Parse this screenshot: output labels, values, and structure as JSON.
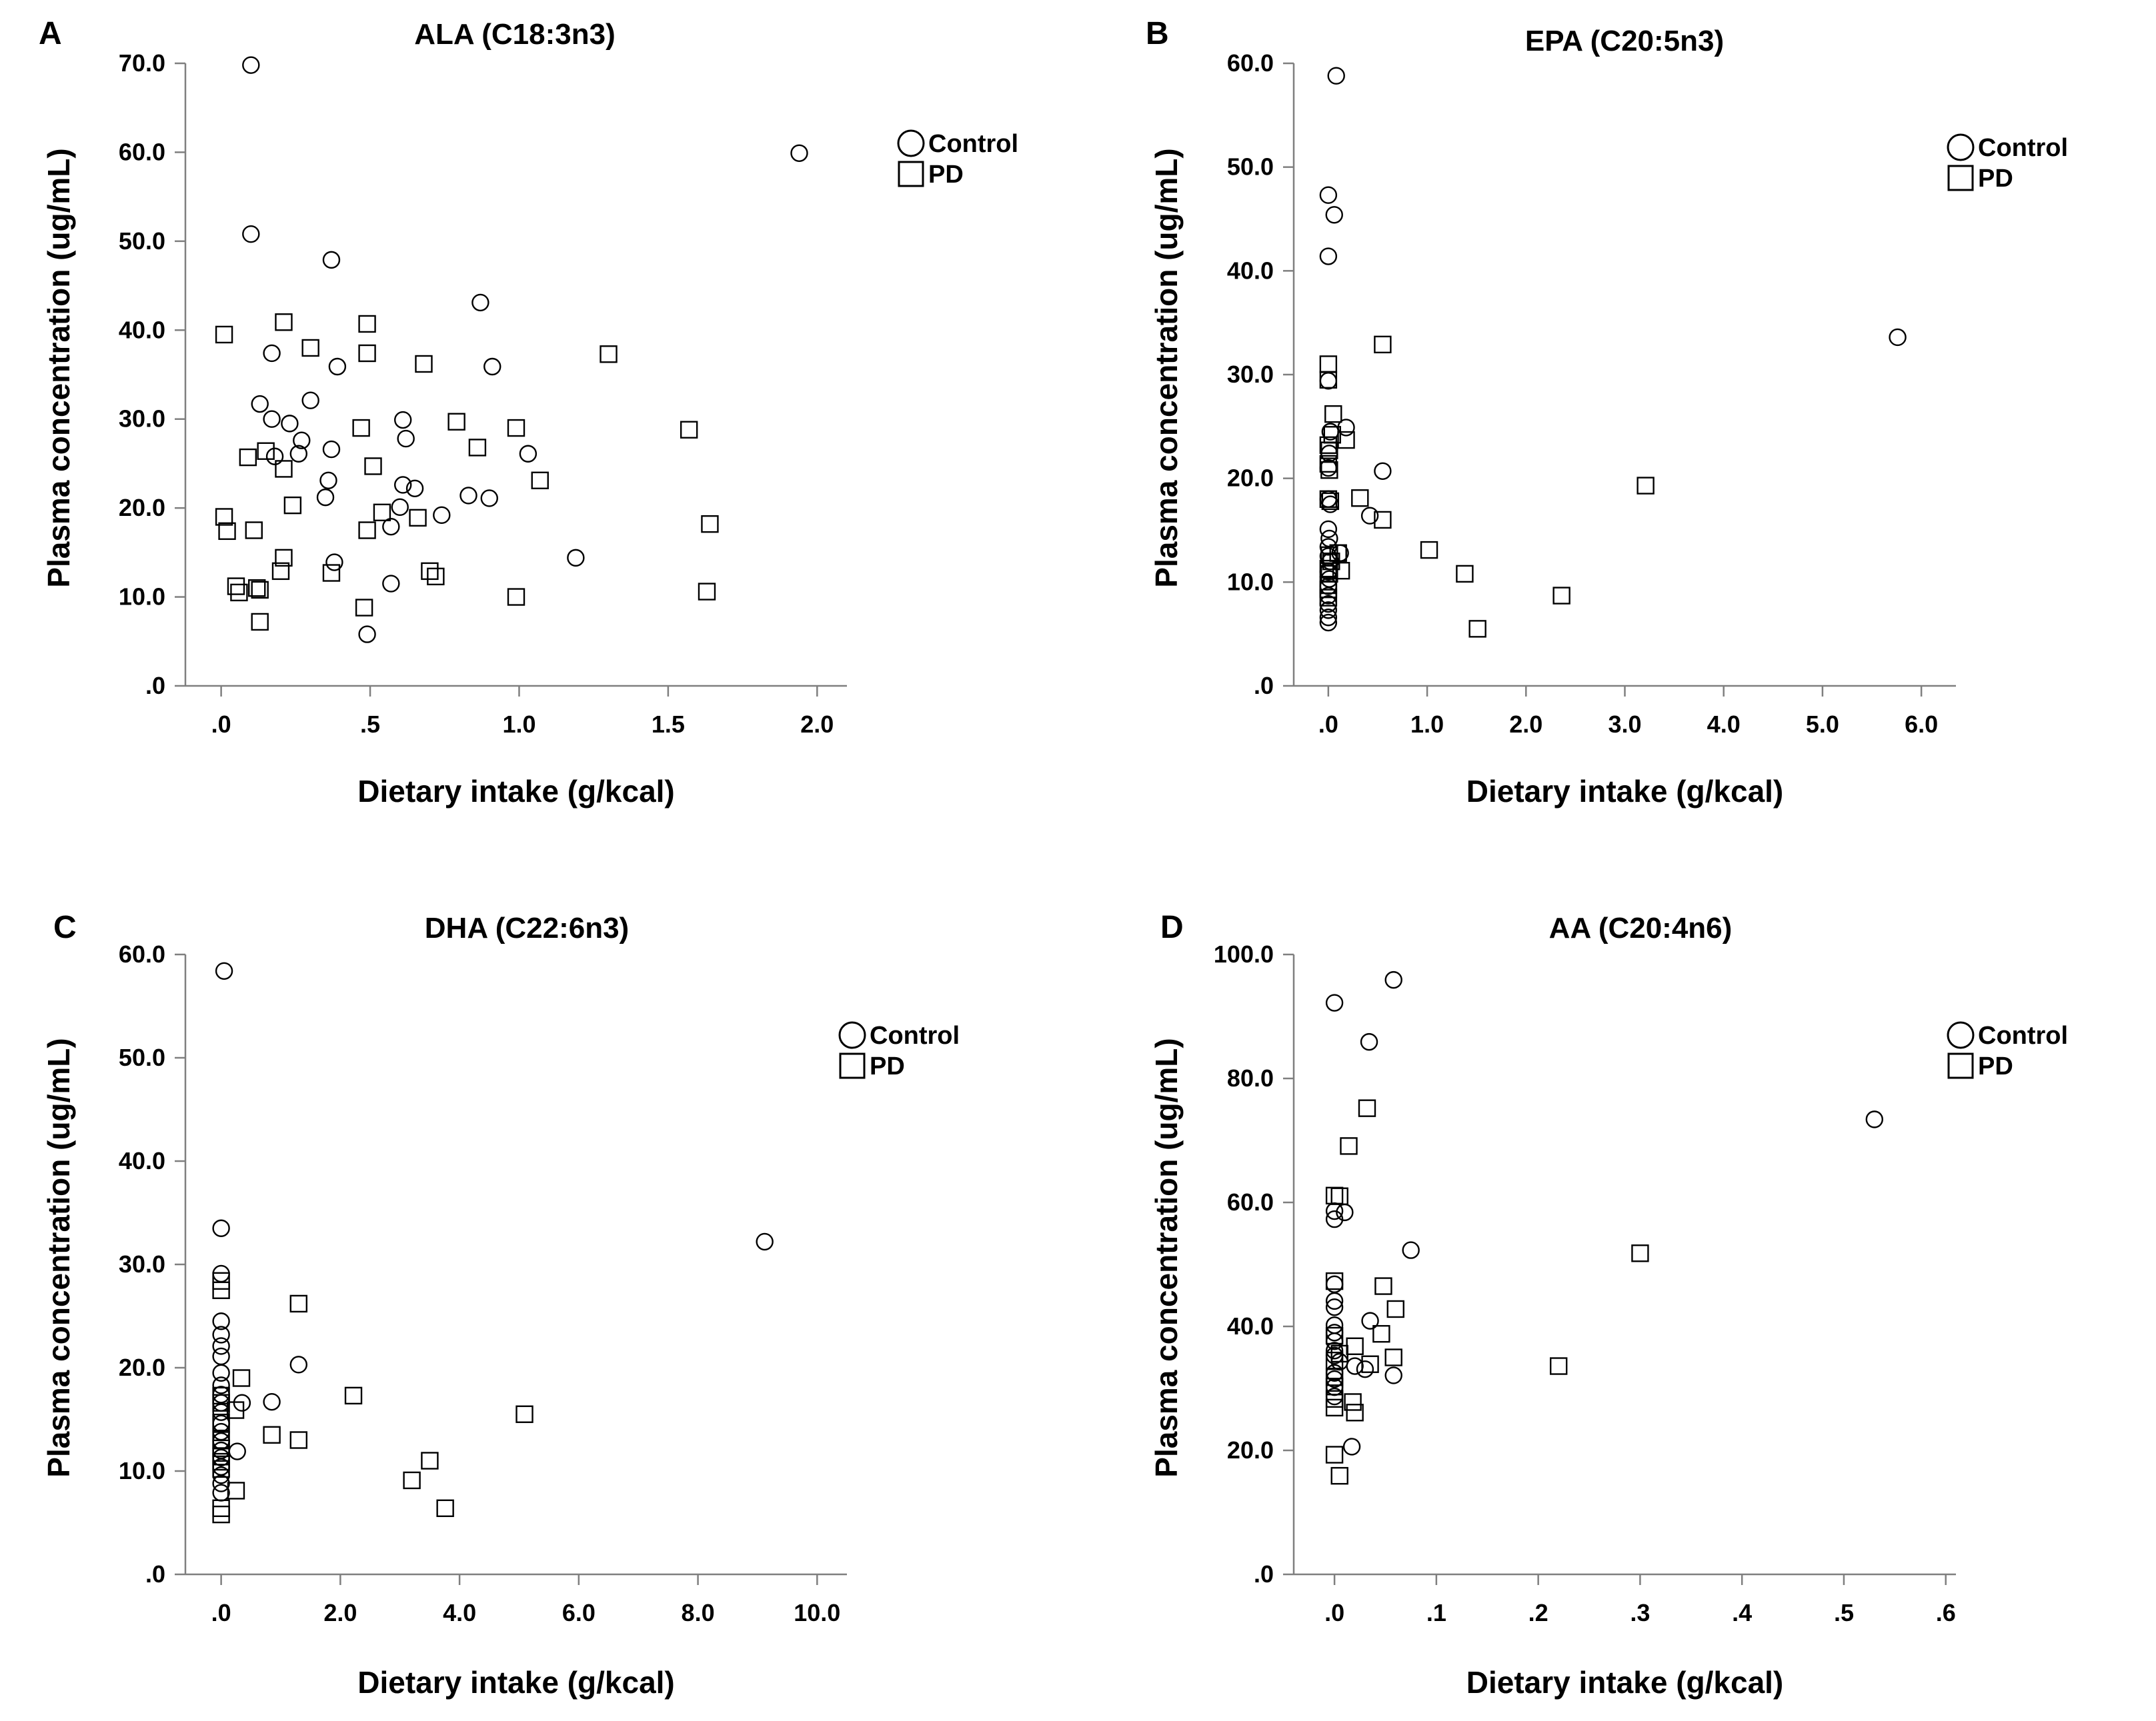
{
  "legend": {
    "control": "Control",
    "pd": "PD"
  },
  "chart_data": [
    {
      "panel": "A",
      "type": "scatter",
      "title": "ALA (C18:3n3)",
      "xlabel": "Dietary intake (g/kcal)",
      "ylabel": "Plasma concentration (ug/mL)",
      "xlim": [
        -0.12,
        2.1
      ],
      "ylim": [
        0,
        70
      ],
      "xticks": [
        0,
        0.5,
        1.0,
        1.5,
        2.0
      ],
      "xtick_labels": [
        ".0",
        ".5",
        "1.0",
        "1.5",
        "2.0"
      ],
      "yticks": [
        0,
        10,
        20,
        30,
        40,
        50,
        60,
        70
      ],
      "ytick_labels": [
        ".0",
        "10.0",
        "20.0",
        "30.0",
        "40.0",
        "50.0",
        "60.0",
        "70.0"
      ],
      "legend_position": "top-right",
      "series": [
        {
          "name": "Control",
          "marker": "circle",
          "points": [
            [
              0.1,
              69.8
            ],
            [
              0.1,
              50.8
            ],
            [
              1.94,
              59.9
            ],
            [
              0.37,
              47.9
            ],
            [
              0.87,
              43.1
            ],
            [
              0.39,
              35.9
            ],
            [
              0.91,
              35.9
            ],
            [
              0.17,
              37.4
            ],
            [
              0.13,
              31.7
            ],
            [
              0.17,
              30.0
            ],
            [
              0.3,
              32.1
            ],
            [
              0.23,
              29.5
            ],
            [
              0.61,
              29.9
            ],
            [
              0.62,
              27.8
            ],
            [
              0.27,
              27.6
            ],
            [
              0.37,
              26.6
            ],
            [
              0.18,
              25.8
            ],
            [
              0.26,
              26.1
            ],
            [
              1.03,
              26.1
            ],
            [
              0.36,
              23.1
            ],
            [
              0.35,
              21.2
            ],
            [
              0.61,
              22.6
            ],
            [
              0.65,
              22.2
            ],
            [
              0.6,
              20.1
            ],
            [
              0.74,
              19.2
            ],
            [
              0.83,
              21.4
            ],
            [
              0.9,
              21.1
            ],
            [
              0.57,
              17.9
            ],
            [
              0.38,
              13.9
            ],
            [
              1.19,
              14.4
            ],
            [
              0.57,
              11.5
            ],
            [
              0.49,
              5.8
            ]
          ]
        },
        {
          "name": "PD",
          "marker": "square",
          "points": [
            [
              0.01,
              39.5
            ],
            [
              0.21,
              40.9
            ],
            [
              0.49,
              40.7
            ],
            [
              0.3,
              38.0
            ],
            [
              0.49,
              37.4
            ],
            [
              0.68,
              36.2
            ],
            [
              1.3,
              37.3
            ],
            [
              0.79,
              29.7
            ],
            [
              0.47,
              29.0
            ],
            [
              0.99,
              29.0
            ],
            [
              1.57,
              28.8
            ],
            [
              0.86,
              26.8
            ],
            [
              0.15,
              26.4
            ],
            [
              0.09,
              25.7
            ],
            [
              0.21,
              24.4
            ],
            [
              0.51,
              24.7
            ],
            [
              1.07,
              23.1
            ],
            [
              0.24,
              20.3
            ],
            [
              0.54,
              19.5
            ],
            [
              0.66,
              18.9
            ],
            [
              0.01,
              19.0
            ],
            [
              0.02,
              17.4
            ],
            [
              0.11,
              17.5
            ],
            [
              0.49,
              17.5
            ],
            [
              1.64,
              18.2
            ],
            [
              0.21,
              14.4
            ],
            [
              0.2,
              12.9
            ],
            [
              0.37,
              12.7
            ],
            [
              0.7,
              12.9
            ],
            [
              0.72,
              12.3
            ],
            [
              0.05,
              11.2
            ],
            [
              0.06,
              10.5
            ],
            [
              0.12,
              11.0
            ],
            [
              0.13,
              10.8
            ],
            [
              0.48,
              8.8
            ],
            [
              0.99,
              10.0
            ],
            [
              1.63,
              10.6
            ],
            [
              0.13,
              7.2
            ]
          ]
        }
      ]
    },
    {
      "panel": "B",
      "type": "scatter",
      "title": "EPA (C20:5n3)",
      "xlabel": "Dietary intake (g/kcal)",
      "ylabel": "Plasma concentration (ug/mL)",
      "xlim": [
        -0.35,
        6.35
      ],
      "ylim": [
        0,
        60
      ],
      "xticks": [
        0,
        1,
        2,
        3,
        4,
        5,
        6
      ],
      "xtick_labels": [
        ".0",
        "1.0",
        "2.0",
        "3.0",
        "4.0",
        "5.0",
        "6.0"
      ],
      "yticks": [
        0,
        10,
        20,
        30,
        40,
        50,
        60
      ],
      "ytick_labels": [
        ".0",
        "10.0",
        "20.0",
        "30.0",
        "40.0",
        "50.0",
        "60.0"
      ],
      "legend_position": "top-right",
      "series": [
        {
          "name": "Control",
          "marker": "circle",
          "points": [
            [
              0.08,
              58.8
            ],
            [
              0.0,
              47.3
            ],
            [
              0.06,
              45.4
            ],
            [
              0.0,
              41.4
            ],
            [
              0.0,
              29.4
            ],
            [
              0.02,
              24.5
            ],
            [
              0.18,
              24.9
            ],
            [
              0.01,
              22.4
            ],
            [
              0.0,
              21.0
            ],
            [
              0.55,
              20.7
            ],
            [
              0.0,
              18.0
            ],
            [
              0.02,
              17.5
            ],
            [
              0.42,
              16.4
            ],
            [
              0.0,
              15.1
            ],
            [
              0.01,
              14.2
            ],
            [
              0.0,
              13.4
            ],
            [
              0.0,
              12.5
            ],
            [
              0.12,
              12.8
            ],
            [
              0.02,
              12.0
            ],
            [
              0.0,
              11.0
            ],
            [
              0.01,
              10.3
            ],
            [
              0.0,
              9.6
            ],
            [
              0.0,
              8.7
            ],
            [
              0.0,
              7.9
            ],
            [
              0.0,
              7.3
            ],
            [
              0.0,
              6.6
            ],
            [
              0.0,
              6.1
            ],
            [
              5.76,
              33.6
            ]
          ]
        },
        {
          "name": "PD",
          "marker": "square",
          "points": [
            [
              0.0,
              31.0
            ],
            [
              0.0,
              29.5
            ],
            [
              0.55,
              32.9
            ],
            [
              0.05,
              26.2
            ],
            [
              0.04,
              24.2
            ],
            [
              0.18,
              23.7
            ],
            [
              0.0,
              23.2
            ],
            [
              0.01,
              22.7
            ],
            [
              0.0,
              21.4
            ],
            [
              0.01,
              20.8
            ],
            [
              0.0,
              18.0
            ],
            [
              0.02,
              17.8
            ],
            [
              0.32,
              18.1
            ],
            [
              0.55,
              16.0
            ],
            [
              0.01,
              12.6
            ],
            [
              0.1,
              12.8
            ],
            [
              0.03,
              12.0
            ],
            [
              0.0,
              11.3
            ],
            [
              0.13,
              11.1
            ],
            [
              0.01,
              10.8
            ],
            [
              0.0,
              9.7
            ],
            [
              0.0,
              9.3
            ],
            [
              0.0,
              8.5
            ],
            [
              1.02,
              13.1
            ],
            [
              1.38,
              10.8
            ],
            [
              1.51,
              5.5
            ],
            [
              2.36,
              8.7
            ],
            [
              3.21,
              19.3
            ]
          ]
        }
      ]
    },
    {
      "panel": "C",
      "type": "scatter",
      "title": "DHA (C22:6n3)",
      "xlabel": "Dietary intake (g/kcal)",
      "ylabel": "Plasma concentration (ug/mL)",
      "xlim": [
        -0.6,
        10.5
      ],
      "ylim": [
        0,
        60
      ],
      "xticks": [
        0,
        2,
        4,
        6,
        8,
        10
      ],
      "xtick_labels": [
        ".0",
        "2.0",
        "4.0",
        "6.0",
        "8.0",
        "10.0"
      ],
      "yticks": [
        0,
        10,
        20,
        30,
        40,
        50,
        60
      ],
      "ytick_labels": [
        ".0",
        "10.0",
        "20.0",
        "30.0",
        "40.0",
        "50.0",
        "60.0"
      ],
      "legend_position": "top-right",
      "series": [
        {
          "name": "Control",
          "marker": "circle",
          "points": [
            [
              0.05,
              58.4
            ],
            [
              0.0,
              33.5
            ],
            [
              0.0,
              29.1
            ],
            [
              0.0,
              24.5
            ],
            [
              0.0,
              23.2
            ],
            [
              0.0,
              22.1
            ],
            [
              0.0,
              21.1
            ],
            [
              0.0,
              19.5
            ],
            [
              0.0,
              18.3
            ],
            [
              0.0,
              17.4
            ],
            [
              0.0,
              16.6
            ],
            [
              0.0,
              15.7
            ],
            [
              0.0,
              14.6
            ],
            [
              0.0,
              13.8
            ],
            [
              0.0,
              12.9
            ],
            [
              0.0,
              12.0
            ],
            [
              0.0,
              11.3
            ],
            [
              0.0,
              10.4
            ],
            [
              0.0,
              9.6
            ],
            [
              0.0,
              8.8
            ],
            [
              0.0,
              7.9
            ],
            [
              0.27,
              11.9
            ],
            [
              0.35,
              16.6
            ],
            [
              0.85,
              16.7
            ],
            [
              1.3,
              20.3
            ],
            [
              9.12,
              32.2
            ]
          ]
        },
        {
          "name": "PD",
          "marker": "square",
          "points": [
            [
              0.0,
              28.4
            ],
            [
              0.0,
              27.5
            ],
            [
              0.0,
              17.3
            ],
            [
              0.0,
              16.6
            ],
            [
              0.0,
              14.7
            ],
            [
              0.0,
              13.0
            ],
            [
              0.0,
              12.2
            ],
            [
              0.0,
              11.4
            ],
            [
              0.0,
              10.9
            ],
            [
              0.0,
              10.2
            ],
            [
              0.0,
              6.4
            ],
            [
              0.0,
              5.8
            ],
            [
              0.24,
              15.9
            ],
            [
              0.34,
              19.0
            ],
            [
              0.25,
              8.1
            ],
            [
              0.85,
              13.5
            ],
            [
              1.3,
              13.0
            ],
            [
              1.3,
              26.2
            ],
            [
              2.22,
              17.3
            ],
            [
              3.2,
              9.1
            ],
            [
              3.5,
              11.0
            ],
            [
              3.76,
              6.4
            ],
            [
              5.09,
              15.5
            ]
          ]
        }
      ]
    },
    {
      "panel": "D",
      "type": "scatter",
      "title": "AA (C20:4n6)",
      "xlabel": "Dietary intake (g/kcal)",
      "ylabel": "Plasma concentration (ug/mL)",
      "xlim": [
        -0.04,
        0.61
      ],
      "ylim": [
        0,
        100
      ],
      "xticks": [
        0,
        0.1,
        0.2,
        0.3,
        0.4,
        0.5,
        0.6
      ],
      "xtick_labels": [
        ".0",
        ".1",
        ".2",
        ".3",
        ".4",
        ".5",
        ".6"
      ],
      "yticks": [
        0,
        20,
        40,
        60,
        80,
        100
      ],
      "ytick_labels": [
        ".0",
        "20.0",
        "40.0",
        "60.0",
        "80.0",
        "100.0"
      ],
      "legend_position": "top-right",
      "series": [
        {
          "name": "Control",
          "marker": "circle",
          "points": [
            [
              0.0,
              92.2
            ],
            [
              0.058,
              95.9
            ],
            [
              0.034,
              85.9
            ],
            [
              0.0,
              58.6
            ],
            [
              0.0,
              57.3
            ],
            [
              0.01,
              58.4
            ],
            [
              0.075,
              52.3
            ],
            [
              0.0,
              46.8
            ],
            [
              0.0,
              44.1
            ],
            [
              0.0,
              43.1
            ],
            [
              0.0,
              40.2
            ],
            [
              0.0,
              39.0
            ],
            [
              0.035,
              40.9
            ],
            [
              0.0,
              37.6
            ],
            [
              0.0,
              36.1
            ],
            [
              0.0,
              35.3
            ],
            [
              0.005,
              34.3
            ],
            [
              0.0,
              32.5
            ],
            [
              0.0,
              31.5
            ],
            [
              0.0,
              30.2
            ],
            [
              0.0,
              28.7
            ],
            [
              0.02,
              33.6
            ],
            [
              0.03,
              33.1
            ],
            [
              0.058,
              32.1
            ],
            [
              0.017,
              20.6
            ],
            [
              0.53,
              73.4
            ]
          ]
        },
        {
          "name": "PD",
          "marker": "square",
          "points": [
            [
              0.032,
              75.2
            ],
            [
              0.014,
              69.1
            ],
            [
              0.0,
              61.1
            ],
            [
              0.005,
              61.0
            ],
            [
              0.0,
              47.3
            ],
            [
              0.048,
              46.5
            ],
            [
              0.06,
              42.8
            ],
            [
              0.0,
              38.5
            ],
            [
              0.046,
              38.8
            ],
            [
              0.02,
              36.8
            ],
            [
              0.005,
              35.6
            ],
            [
              0.0,
              34.5
            ],
            [
              0.058,
              35.0
            ],
            [
              0.035,
              33.9
            ],
            [
              0.0,
              31.8
            ],
            [
              0.0,
              30.3
            ],
            [
              0.0,
              28.3
            ],
            [
              0.018,
              27.8
            ],
            [
              0.0,
              26.9
            ],
            [
              0.02,
              26.1
            ],
            [
              0.0,
              19.3
            ],
            [
              0.005,
              15.9
            ],
            [
              0.22,
              33.6
            ],
            [
              0.3,
              51.8
            ]
          ]
        }
      ]
    }
  ]
}
